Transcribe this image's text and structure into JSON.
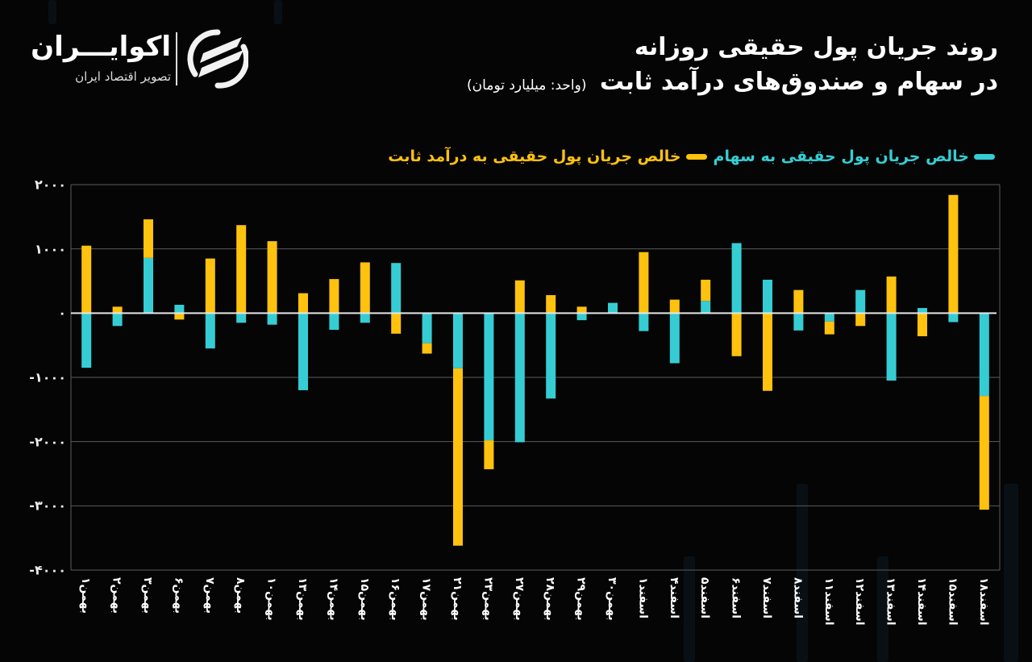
{
  "header": {
    "title_line1": "روند جریان پول حقیقی روزانه",
    "title_line2": "در سهام و صندوق‌های درآمد ثابت",
    "unit": "(واحد: میلیارد تومان)"
  },
  "logo": {
    "name": "اکوایـــران",
    "tagline": "تصویر اقتصاد ایران",
    "icon": "ecoiran-swoosh-icon"
  },
  "legend": {
    "stocks_label": "خالص جریان پول حقیقی به سهام",
    "fixed_income_label": "خالص جریان پول حقیقی به درآمد ثابت"
  },
  "colors": {
    "background": "#050505",
    "stocks": "#35CDD3",
    "fixed_income": "#FFC20E",
    "grid": "#5a5a5a",
    "zero_line": "#e6e6e6"
  },
  "chart_data": {
    "type": "bar",
    "stacked": true,
    "title": "روند جریان پول حقیقی روزانه در سهام و صندوق‌های درآمد ثابت",
    "subtitle": "(واحد: میلیارد تومان)",
    "xlabel": "",
    "ylabel": "میلیارد تومان",
    "ylim": [
      -4000,
      2000
    ],
    "yticks": [
      2000,
      1000,
      0,
      -1000,
      -2000,
      -3000,
      -4000
    ],
    "ytick_labels": [
      "۲۰۰۰",
      "۱۰۰۰",
      "۰",
      "-۱۰۰۰",
      "-۲۰۰۰",
      "-۳۰۰۰",
      "-۴۰۰۰"
    ],
    "grid": true,
    "legend_position": "top-right",
    "categories": [
      "بهمن۱",
      "بهمن۲",
      "بهمن۳",
      "بهمن۶",
      "بهمن۷",
      "بهمن۸",
      "بهمن۱۰",
      "بهمن۱۳",
      "بهمن۱۴",
      "بهمن۱۵",
      "بهمن۱۶",
      "بهمن۱۷",
      "بهمن۲۱",
      "بهمن۲۳",
      "بهمن۲۷",
      "بهمن۲۸",
      "بهمن۲۹",
      "بهمن۳۰",
      "اسفند۱",
      "اسفند۴",
      "اسفند۵",
      "اسفند۶",
      "اسفند۷",
      "اسفند۸",
      "اسفند۱۱",
      "اسفند۱۲",
      "اسفند۱۳",
      "اسفند۱۴",
      "اسفند۱۵",
      "اسفند۱۸"
    ],
    "series": [
      {
        "name": "خالص جریان پول حقیقی به سهام",
        "color": "#35CDD3",
        "values": [
          -850,
          -200,
          860,
          130,
          -550,
          -150,
          -180,
          -1200,
          -260,
          -150,
          780,
          -470,
          -860,
          -1980,
          -2010,
          -1330,
          -110,
          160,
          -280,
          -780,
          190,
          1090,
          520,
          -270,
          -130,
          360,
          -1050,
          80,
          -140,
          -1290
        ]
      },
      {
        "name": "خالص جریان پول حقیقی به درآمد ثابت",
        "color": "#FFC20E",
        "values": [
          1050,
          100,
          600,
          -100,
          850,
          1370,
          1120,
          310,
          530,
          790,
          -320,
          -160,
          -2760,
          -450,
          510,
          280,
          100,
          0,
          950,
          210,
          330,
          -670,
          -1210,
          360,
          -200,
          -200,
          570,
          -360,
          1840,
          -1770
        ]
      }
    ]
  }
}
